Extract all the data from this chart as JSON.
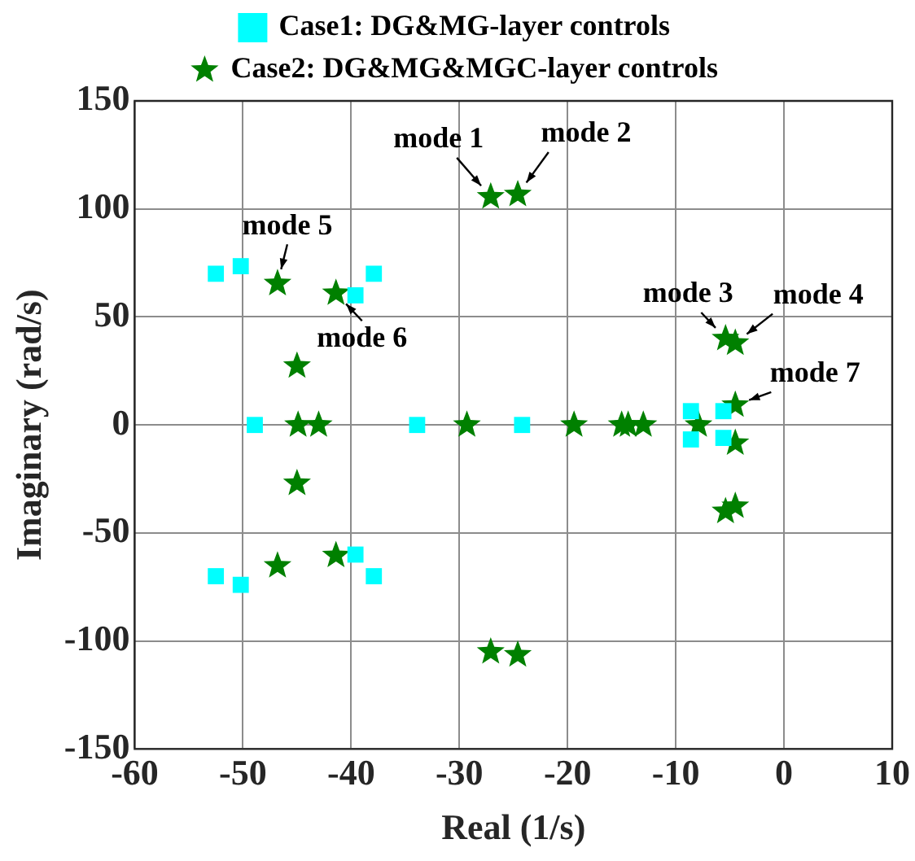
{
  "chart_data": {
    "type": "scatter",
    "xlabel": "Real (1/s)",
    "ylabel": "Imaginary (rad/s)",
    "xlim": [
      -60,
      10
    ],
    "xticks": [
      -60,
      -50,
      -40,
      -30,
      -20,
      -10,
      0,
      10
    ],
    "ylim": [
      -150,
      150
    ],
    "yticks": [
      -150,
      -100,
      -50,
      0,
      50,
      100,
      150
    ],
    "grid": true,
    "legend": "top",
    "series": [
      {
        "name": "Case1: DG&MG-layer controls",
        "color": "#00ffff",
        "marker": "square",
        "x": [
          -52.5,
          -50.2,
          -48.9,
          -39.6,
          -37.9,
          -33.9,
          -24.2,
          -8.6,
          -8.6,
          -5.6,
          -5.6,
          -52.5,
          -50.2,
          -39.6,
          -37.9
        ],
        "values": [
          70,
          73.5,
          0,
          60,
          70,
          0,
          0,
          6.4,
          -6.7,
          6.4,
          -6,
          -70,
          -74,
          -60,
          -70
        ]
      },
      {
        "name": "Case2: DG&MG&MGC-layer controls",
        "color": "#008000",
        "marker": "star",
        "x": [
          -27.1,
          -24.6,
          -46.8,
          -41.4,
          -45,
          -44.9,
          -43,
          -29.3,
          -19.4,
          -15,
          -14.4,
          -13,
          -7.9,
          -5.4,
          -4.5,
          -4.5,
          -4.5,
          -5.4,
          -4.5,
          -45,
          -46.8,
          -41.4,
          -27.1,
          -24.6
        ],
        "values": [
          105.6,
          106.7,
          65.5,
          61,
          27.3,
          0,
          0,
          0,
          0,
          0,
          0,
          0,
          0,
          40,
          37.9,
          9.2,
          -8.4,
          -40,
          -37.6,
          -27,
          -65.2,
          -60.4,
          -105,
          -106.4
        ]
      }
    ],
    "annotations": [
      {
        "text": "mode 1",
        "x": -27.1,
        "y": 105.6
      },
      {
        "text": "mode 2",
        "x": -24.6,
        "y": 106.7
      },
      {
        "text": "mode 3",
        "x": -5.4,
        "y": 40
      },
      {
        "text": "mode 4",
        "x": -4.5,
        "y": 37.9
      },
      {
        "text": "mode 5",
        "x": -46.8,
        "y": 65.5
      },
      {
        "text": "mode 6",
        "x": -41.4,
        "y": 61
      },
      {
        "text": "mode 7",
        "x": -4.5,
        "y": 9.2
      }
    ]
  }
}
